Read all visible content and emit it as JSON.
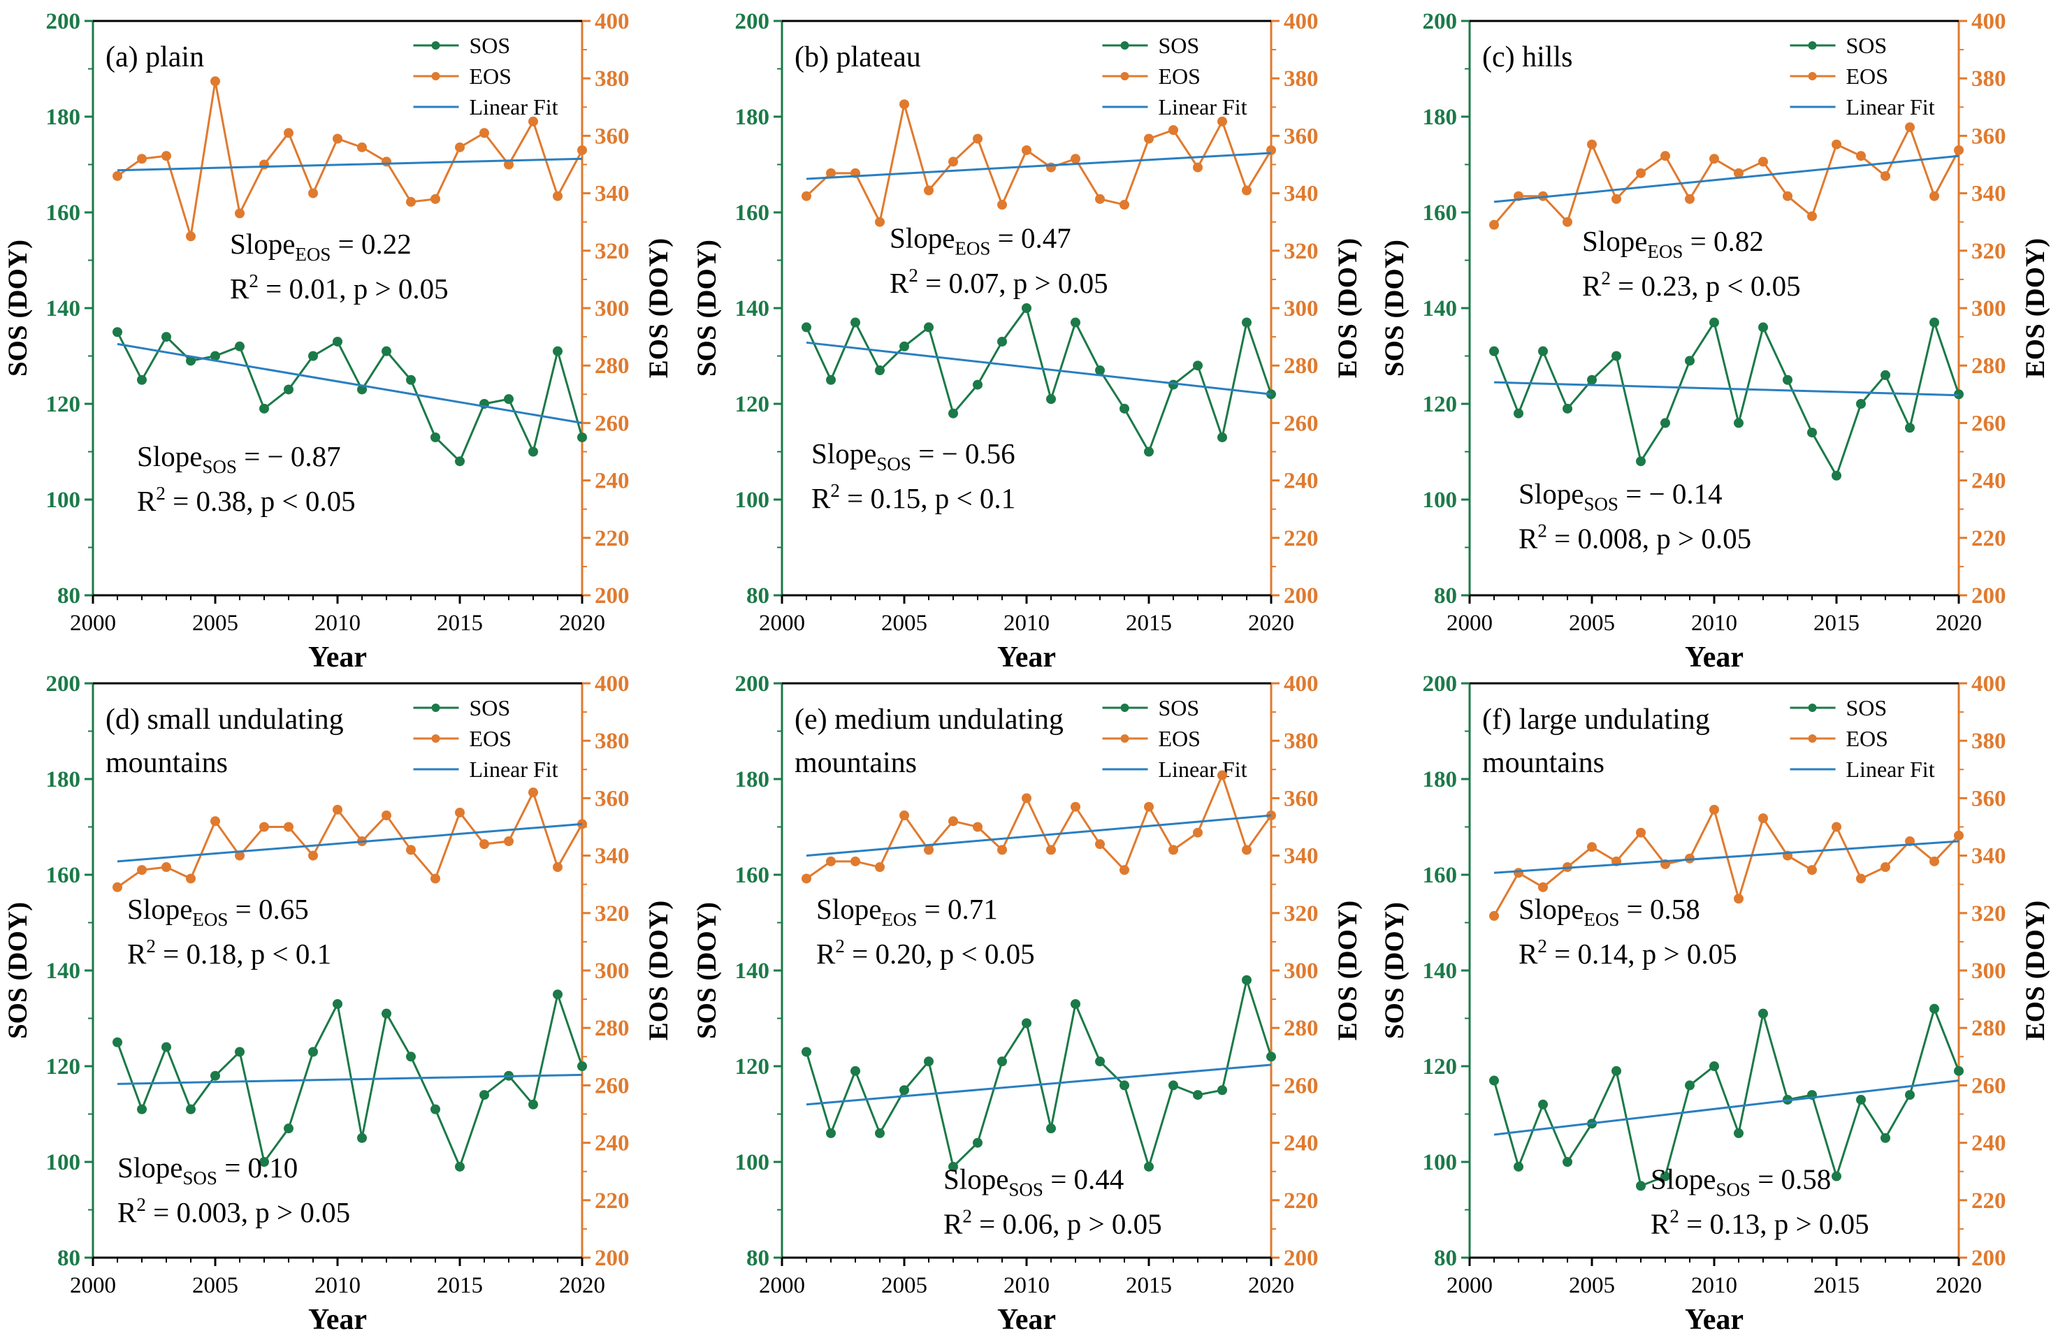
{
  "chart_data": [
    {
      "type": "line",
      "title": "(a) plain",
      "xlabel": "Year",
      "ylabel_left": "SOS (DOY)",
      "ylabel_right": "EOS (DOY)",
      "xlim": [
        2000,
        2020
      ],
      "ylim_left": [
        80,
        200
      ],
      "ylim_right": [
        200,
        400
      ],
      "x": [
        2001,
        2002,
        2003,
        2004,
        2005,
        2006,
        2007,
        2008,
        2009,
        2010,
        2011,
        2012,
        2013,
        2014,
        2015,
        2016,
        2017,
        2018,
        2019,
        2020
      ],
      "series": [
        {
          "name": "SOS",
          "axis": "left",
          "values": [
            135,
            125,
            134,
            129,
            130,
            132,
            119,
            123,
            130,
            133,
            123,
            131,
            125,
            113,
            108,
            120,
            121,
            110,
            131,
            113
          ]
        },
        {
          "name": "EOS",
          "axis": "right",
          "values": [
            346,
            352,
            353,
            325,
            379,
            333,
            350,
            361,
            340,
            359,
            356,
            351,
            337,
            338,
            356,
            361,
            350,
            365,
            339,
            355
          ]
        }
      ],
      "fits": [
        {
          "axis": "left",
          "from": [
            2001,
            132.5
          ],
          "to": [
            2020,
            116
          ]
        },
        {
          "axis": "right",
          "from": [
            2001,
            348
          ],
          "to": [
            2020,
            352
          ]
        }
      ],
      "legend": {
        "sos": "SOS",
        "eos": "EOS",
        "fit": "Linear Fit"
      },
      "annotations": {
        "eos_slope_pre": "Slope",
        "eos_slope_sub": "EOS",
        "eos_slope_post": " = 0.22",
        "eos_r_pre": "R",
        "eos_r_sup": "2",
        "eos_r_post": " = 0.01, p > 0.05",
        "sos_slope_pre": "Slope",
        "sos_slope_sub": "SOS",
        "sos_slope_post": " = − 0.87",
        "sos_r_pre": "R",
        "sos_r_sup": "2",
        "sos_r_post": " = 0.38, p < 0.05"
      }
    },
    {
      "type": "line",
      "title": "(b) plateau",
      "xlabel": "Year",
      "ylabel_left": "SOS (DOY)",
      "ylabel_right": "EOS (DOY)",
      "xlim": [
        2000,
        2020
      ],
      "ylim_left": [
        80,
        200
      ],
      "ylim_right": [
        200,
        400
      ],
      "x": [
        2001,
        2002,
        2003,
        2004,
        2005,
        2006,
        2007,
        2008,
        2009,
        2010,
        2011,
        2012,
        2013,
        2014,
        2015,
        2016,
        2017,
        2018,
        2019,
        2020
      ],
      "series": [
        {
          "name": "SOS",
          "axis": "left",
          "values": [
            136,
            125,
            137,
            127,
            132,
            136,
            118,
            124,
            133,
            140,
            121,
            137,
            127,
            119,
            110,
            124,
            128,
            113,
            137,
            122
          ]
        },
        {
          "name": "EOS",
          "axis": "right",
          "values": [
            339,
            347,
            347,
            330,
            371,
            341,
            351,
            359,
            336,
            355,
            349,
            352,
            338,
            336,
            359,
            362,
            349,
            365,
            341,
            355
          ]
        }
      ],
      "fits": [
        {
          "axis": "left",
          "from": [
            2001,
            132.8
          ],
          "to": [
            2020,
            122
          ]
        },
        {
          "axis": "right",
          "from": [
            2001,
            345
          ],
          "to": [
            2020,
            354
          ]
        }
      ],
      "legend": {
        "sos": "SOS",
        "eos": "EOS",
        "fit": "Linear Fit"
      },
      "annotations": {
        "eos_slope_pre": "Slope",
        "eos_slope_sub": "EOS",
        "eos_slope_post": " = 0.47",
        "eos_r_pre": "R",
        "eos_r_sup": "2",
        "eos_r_post": " = 0.07, p > 0.05",
        "sos_slope_pre": "Slope",
        "sos_slope_sub": "SOS",
        "sos_slope_post": " = − 0.56",
        "sos_r_pre": "R",
        "sos_r_sup": "2",
        "sos_r_post": " = 0.15, p < 0.1"
      }
    },
    {
      "type": "line",
      "title": "(c) hills",
      "xlabel": "Year",
      "ylabel_left": "SOS (DOY)",
      "ylabel_right": "EOS (DOY)",
      "xlim": [
        2000,
        2020
      ],
      "ylim_left": [
        80,
        200
      ],
      "ylim_right": [
        200,
        400
      ],
      "x": [
        2001,
        2002,
        2003,
        2004,
        2005,
        2006,
        2007,
        2008,
        2009,
        2010,
        2011,
        2012,
        2013,
        2014,
        2015,
        2016,
        2017,
        2018,
        2019,
        2020
      ],
      "series": [
        {
          "name": "SOS",
          "axis": "left",
          "values": [
            131,
            118,
            131,
            119,
            125,
            130,
            108,
            116,
            129,
            137,
            116,
            136,
            125,
            114,
            105,
            120,
            126,
            115,
            137,
            122
          ]
        },
        {
          "name": "EOS",
          "axis": "right",
          "values": [
            329,
            339,
            339,
            330,
            357,
            338,
            347,
            353,
            338,
            352,
            347,
            351,
            339,
            332,
            357,
            353,
            346,
            363,
            339,
            355
          ]
        }
      ],
      "fits": [
        {
          "axis": "left",
          "from": [
            2001,
            124.5
          ],
          "to": [
            2020,
            121.8
          ]
        },
        {
          "axis": "right",
          "from": [
            2001,
            337
          ],
          "to": [
            2020,
            353
          ]
        }
      ],
      "legend": {
        "sos": "SOS",
        "eos": "EOS",
        "fit": "Linear Fit"
      },
      "annotations": {
        "eos_slope_pre": "Slope",
        "eos_slope_sub": "EOS",
        "eos_slope_post": " = 0.82",
        "eos_r_pre": "R",
        "eos_r_sup": "2",
        "eos_r_post": " = 0.23, p < 0.05",
        "sos_slope_pre": "Slope",
        "sos_slope_sub": "SOS",
        "sos_slope_post": " = − 0.14",
        "sos_r_pre": "R",
        "sos_r_sup": "2",
        "sos_r_post": " = 0.008, p > 0.05"
      }
    },
    {
      "type": "line",
      "title": "(d) small undulating\nmountains",
      "title_line1": "(d) small undulating",
      "title_line2": "mountains",
      "xlabel": "Year",
      "ylabel_left": "SOS (DOY)",
      "ylabel_right": "EOS (DOY)",
      "xlim": [
        2000,
        2020
      ],
      "ylim_left": [
        80,
        200
      ],
      "ylim_right": [
        200,
        400
      ],
      "x": [
        2001,
        2002,
        2003,
        2004,
        2005,
        2006,
        2007,
        2008,
        2009,
        2010,
        2011,
        2012,
        2013,
        2014,
        2015,
        2016,
        2017,
        2018,
        2019,
        2020
      ],
      "series": [
        {
          "name": "SOS",
          "axis": "left",
          "values": [
            125,
            111,
            124,
            111,
            118,
            123,
            100,
            107,
            123,
            133,
            105,
            131,
            122,
            111,
            99,
            114,
            118,
            112,
            135,
            120
          ]
        },
        {
          "name": "EOS",
          "axis": "right",
          "values": [
            329,
            335,
            336,
            332,
            352,
            340,
            350,
            350,
            340,
            356,
            345,
            354,
            342,
            332,
            355,
            344,
            345,
            362,
            336,
            351
          ]
        }
      ],
      "fits": [
        {
          "axis": "left",
          "from": [
            2001,
            116.3
          ],
          "to": [
            2020,
            118.2
          ]
        },
        {
          "axis": "right",
          "from": [
            2001,
            338
          ],
          "to": [
            2020,
            351
          ]
        }
      ],
      "legend": {
        "sos": "SOS",
        "eos": "EOS",
        "fit": "Linear Fit"
      },
      "annotations": {
        "eos_slope_pre": "Slope",
        "eos_slope_sub": "EOS",
        "eos_slope_post": " = 0.65",
        "eos_r_pre": "R",
        "eos_r_sup": "2",
        "eos_r_post": " = 0.18, p < 0.1",
        "sos_slope_pre": "Slope",
        "sos_slope_sub": "SOS",
        "sos_slope_post": " = 0.10",
        "sos_r_pre": "R",
        "sos_r_sup": "2",
        "sos_r_post": " = 0.003, p > 0.05"
      }
    },
    {
      "type": "line",
      "title": "(e) medium undulating\nmountains",
      "title_line1": "(e) medium undulating",
      "title_line2": "mountains",
      "xlabel": "Year",
      "ylabel_left": "SOS (DOY)",
      "ylabel_right": "EOS (DOY)",
      "xlim": [
        2000,
        2020
      ],
      "ylim_left": [
        80,
        200
      ],
      "ylim_right": [
        200,
        400
      ],
      "x": [
        2001,
        2002,
        2003,
        2004,
        2005,
        2006,
        2007,
        2008,
        2009,
        2010,
        2011,
        2012,
        2013,
        2014,
        2015,
        2016,
        2017,
        2018,
        2019,
        2020
      ],
      "series": [
        {
          "name": "SOS",
          "axis": "left",
          "values": [
            123,
            106,
            119,
            106,
            115,
            121,
            99,
            104,
            121,
            129,
            107,
            133,
            121,
            116,
            99,
            116,
            114,
            115,
            138,
            122
          ]
        },
        {
          "name": "EOS",
          "axis": "right",
          "values": [
            332,
            338,
            338,
            336,
            354,
            342,
            352,
            350,
            342,
            360,
            342,
            357,
            344,
            335,
            357,
            342,
            348,
            368,
            342,
            354
          ]
        }
      ],
      "fits": [
        {
          "axis": "left",
          "from": [
            2001,
            112
          ],
          "to": [
            2020,
            120.3
          ]
        },
        {
          "axis": "right",
          "from": [
            2001,
            340
          ],
          "to": [
            2020,
            354
          ]
        }
      ],
      "legend": {
        "sos": "SOS",
        "eos": "EOS",
        "fit": "Linear Fit"
      },
      "annotations": {
        "eos_slope_pre": "Slope",
        "eos_slope_sub": "EOS",
        "eos_slope_post": " = 0.71",
        "eos_r_pre": "R",
        "eos_r_sup": "2",
        "eos_r_post": " = 0.20, p < 0.05",
        "sos_slope_pre": "Slope",
        "sos_slope_sub": "SOS",
        "sos_slope_post": " = 0.44",
        "sos_r_pre": "R",
        "sos_r_sup": "2",
        "sos_r_post": " = 0.06, p > 0.05"
      }
    },
    {
      "type": "line",
      "title": "(f) large undulating\nmountains",
      "title_line1": "(f) large undulating",
      "title_line2": "mountains",
      "xlabel": "Year",
      "ylabel_left": "SOS (DOY)",
      "ylabel_right": "EOS (DOY)",
      "xlim": [
        2000,
        2020
      ],
      "ylim_left": [
        80,
        200
      ],
      "ylim_right": [
        200,
        400
      ],
      "x": [
        2001,
        2002,
        2003,
        2004,
        2005,
        2006,
        2007,
        2008,
        2009,
        2010,
        2011,
        2012,
        2013,
        2014,
        2015,
        2016,
        2017,
        2018,
        2019,
        2020
      ],
      "series": [
        {
          "name": "SOS",
          "axis": "left",
          "values": [
            117,
            99,
            112,
            100,
            108,
            119,
            95,
            97,
            116,
            120,
            106,
            131,
            113,
            114,
            97,
            113,
            105,
            114,
            132,
            119
          ]
        },
        {
          "name": "EOS",
          "axis": "right",
          "values": [
            319,
            334,
            329,
            336,
            343,
            338,
            348,
            337,
            339,
            356,
            325,
            353,
            340,
            335,
            350,
            332,
            336,
            345,
            338,
            347
          ]
        }
      ],
      "fits": [
        {
          "axis": "left",
          "from": [
            2001,
            105.7
          ],
          "to": [
            2020,
            117
          ]
        },
        {
          "axis": "right",
          "from": [
            2001,
            334
          ],
          "to": [
            2020,
            345
          ]
        }
      ],
      "legend": {
        "sos": "SOS",
        "eos": "EOS",
        "fit": "Linear Fit"
      },
      "annotations": {
        "eos_slope_pre": "Slope",
        "eos_slope_sub": "EOS",
        "eos_slope_post": " = 0.58",
        "eos_r_pre": "R",
        "eos_r_sup": "2",
        "eos_r_post": " = 0.14, p > 0.05",
        "sos_slope_pre": "Slope",
        "sos_slope_sub": "SOS",
        "sos_slope_post": " = 0.58",
        "sos_r_pre": "R",
        "sos_r_sup": "2",
        "sos_r_post": " = 0.13, p > 0.05"
      }
    }
  ],
  "colors": {
    "sos": "#1b7a48",
    "eos": "#e07a2e",
    "fit": "#2a7fc0",
    "axis": "#000000"
  }
}
